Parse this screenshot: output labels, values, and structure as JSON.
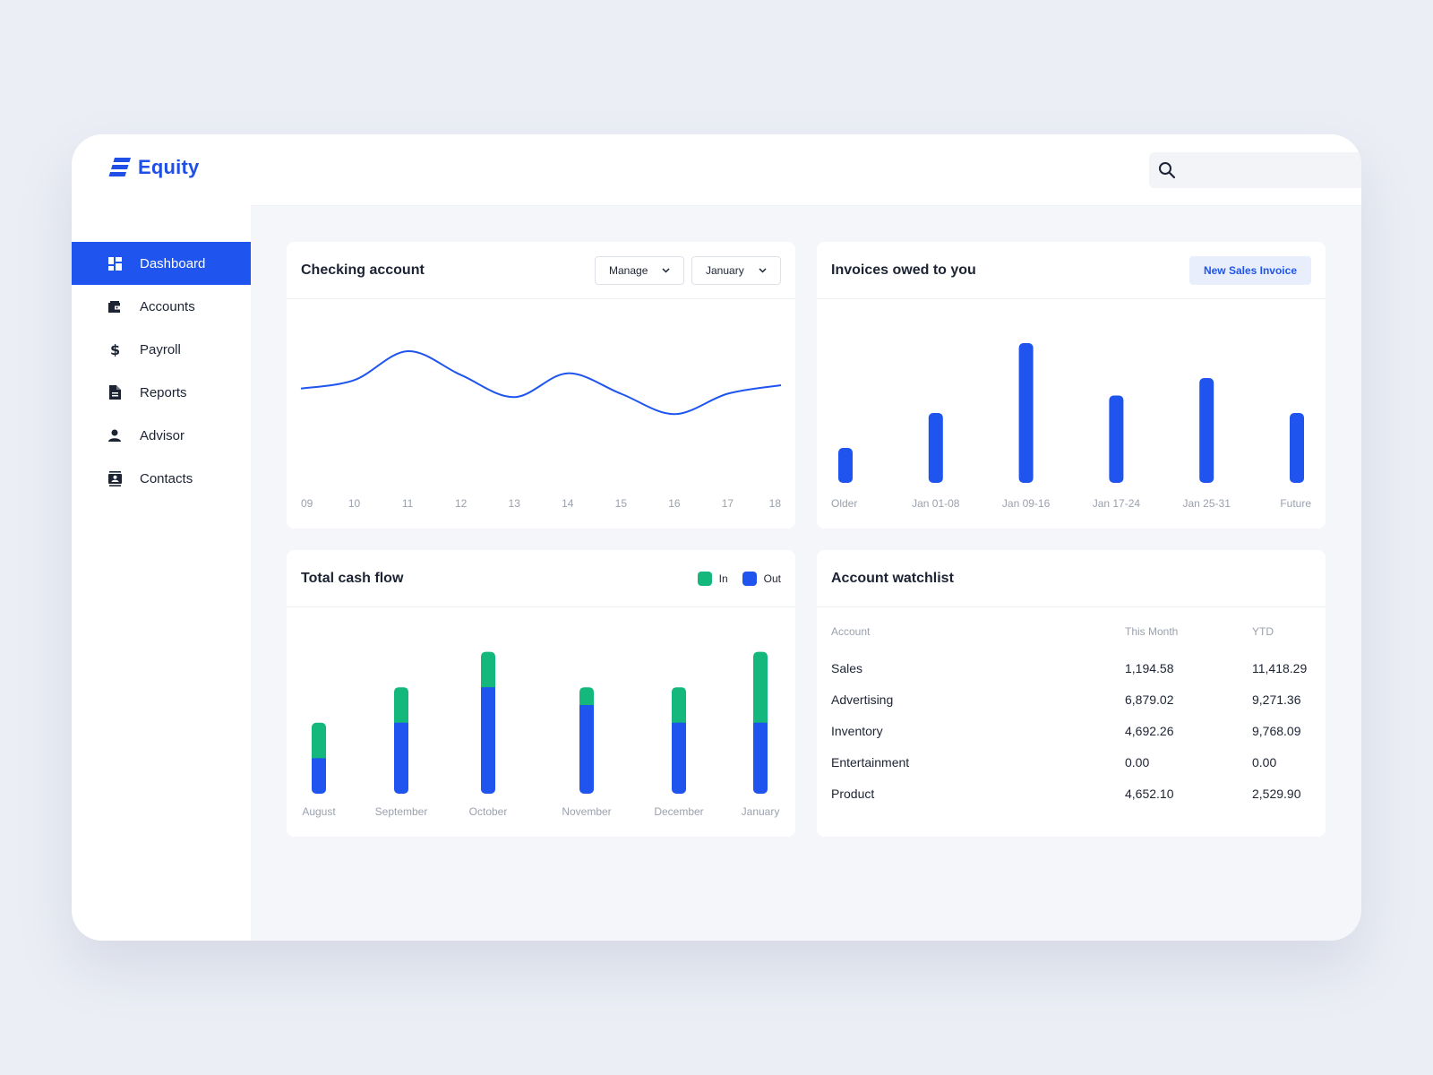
{
  "brand": {
    "name": "Equity",
    "color": "#1f4fe6"
  },
  "nav": [
    {
      "label": "Dashboard",
      "icon": "dashboard-icon",
      "active": true
    },
    {
      "label": "Accounts",
      "icon": "wallet-icon",
      "active": false
    },
    {
      "label": "Payroll",
      "icon": "dollar-icon",
      "active": false
    },
    {
      "label": "Reports",
      "icon": "document-icon",
      "active": false
    },
    {
      "label": "Advisor",
      "icon": "person-icon",
      "active": false
    },
    {
      "label": "Contacts",
      "icon": "contact-card-icon",
      "active": false
    }
  ],
  "topbar": {
    "search_placeholder": "",
    "notification_dot": true
  },
  "checking": {
    "title": "Checking account",
    "manage_label": "Manage",
    "month_label": "January"
  },
  "invoices": {
    "title": "Invoices owed to you",
    "button_label": "New Sales Invoice"
  },
  "cashflow": {
    "title": "Total cash flow",
    "legend_in": "In",
    "legend_out": "Out"
  },
  "watchlist": {
    "title": "Account watchlist",
    "headers": [
      "Account",
      "This Month",
      "YTD"
    ],
    "rows": [
      [
        "Sales",
        "1,194.58",
        "11,418.29"
      ],
      [
        "Advertising",
        "6,879.02",
        "9,271.36"
      ],
      [
        "Inventory",
        "4,692.26",
        "9,768.09"
      ],
      [
        "Entertainment",
        "0.00",
        "0.00"
      ],
      [
        "Product",
        "4,652.10",
        "2,529.90"
      ]
    ]
  },
  "colors": {
    "accent": "#1f55ee",
    "in": "#14b87c",
    "out": "#1f55ee"
  },
  "chart_data": [
    {
      "type": "line",
      "x": [
        "09",
        "10",
        "11",
        "12",
        "13",
        "14",
        "15",
        "16",
        "17",
        "18"
      ],
      "values": [
        58,
        63,
        80,
        66,
        53,
        67,
        55,
        43,
        55,
        60
      ],
      "ylim": [
        0,
        100
      ]
    },
    {
      "type": "bar",
      "categories": [
        "Older",
        "Jan 01-08",
        "Jan 09-16",
        "Jan 17-24",
        "Jan 25-31",
        "Future"
      ],
      "values": [
        20,
        40,
        80,
        50,
        60,
        40
      ],
      "ylim": [
        0,
        100
      ]
    },
    {
      "type": "bar",
      "stacked": true,
      "categories": [
        "August",
        "September",
        "October",
        "November",
        "December",
        "January"
      ],
      "series": [
        {
          "name": "Out",
          "values": [
            20,
            40,
            60,
            50,
            40,
            40
          ]
        },
        {
          "name": "In",
          "values": [
            20,
            20,
            20,
            10,
            20,
            40
          ]
        }
      ],
      "ylim": [
        0,
        100
      ]
    }
  ]
}
